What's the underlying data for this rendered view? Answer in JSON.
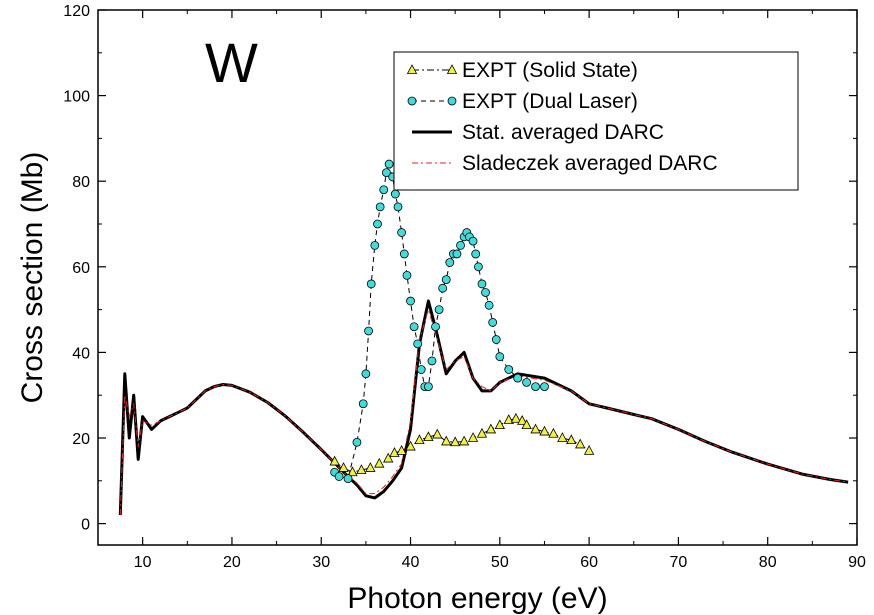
{
  "chart_data": {
    "type": "line",
    "annotation": "W",
    "xlabel": "Photon energy (eV)",
    "ylabel": "Cross section (Mb)",
    "xlim": [
      5,
      90
    ],
    "ylim": [
      -5,
      120
    ],
    "xticks": [
      10,
      20,
      30,
      40,
      50,
      60,
      70,
      80,
      90
    ],
    "yticks": [
      0,
      20,
      40,
      60,
      80,
      100,
      120
    ],
    "grid": false,
    "legend_position": "top-right",
    "series": [
      {
        "name": "EXPT (Solid State)",
        "style": "dash-dot line with triangle markers",
        "color": "#000000",
        "marker_fill": "#f2f23c",
        "x": [
          31.5,
          32.5,
          33.5,
          34.5,
          35.5,
          36.5,
          37.5,
          38.2,
          39,
          40,
          41,
          42,
          43,
          44,
          45,
          46,
          47,
          48,
          49,
          50,
          51,
          51.8,
          52.5,
          53,
          54,
          55,
          56,
          57,
          58,
          59,
          60
        ],
        "y": [
          14.5,
          13,
          12,
          12.5,
          13,
          14,
          15.2,
          16.5,
          17,
          18,
          19.5,
          20.2,
          20.8,
          19.2,
          19,
          19.2,
          20,
          21,
          22,
          23,
          24.2,
          24.5,
          24,
          23,
          22,
          21.5,
          21,
          20,
          19.5,
          18.5,
          17
        ]
      },
      {
        "name": "EXPT (Dual Laser)",
        "style": "dashed line with circle markers",
        "color": "#000000",
        "marker_fill": "#3fdcdc",
        "x": [
          31.5,
          32,
          33,
          34,
          34.7,
          35,
          35.3,
          35.6,
          36,
          36.3,
          36.6,
          37,
          37.3,
          37.6,
          38,
          38.3,
          38.6,
          39,
          39.3,
          39.6,
          40,
          40.4,
          40.8,
          41.2,
          41.6,
          42,
          42.4,
          42.8,
          43.2,
          43.6,
          44,
          44.4,
          44.8,
          45.2,
          45.6,
          46,
          46.3,
          46.6,
          47,
          47.3,
          47.6,
          48,
          48.4,
          48.8,
          49.2,
          49.6,
          50,
          51,
          52,
          53,
          54,
          55
        ],
        "y": [
          12,
          11,
          10.5,
          19,
          28,
          35,
          45,
          56,
          65,
          70,
          74,
          78,
          82,
          84,
          81,
          77,
          74,
          68,
          63,
          58,
          52,
          46,
          42,
          36,
          32,
          32,
          38,
          46,
          50,
          55,
          57,
          61,
          63,
          63,
          65,
          67,
          68,
          67,
          66,
          63,
          60,
          56,
          54,
          51,
          47,
          43,
          39,
          36,
          34,
          33,
          32,
          32
        ]
      },
      {
        "name": "Stat. averaged DARC",
        "style": "thick solid line",
        "color": "#000000",
        "x": [
          7.5,
          8,
          8.5,
          9,
          9.5,
          10,
          11,
          12,
          13,
          14,
          15,
          16,
          17,
          18,
          19,
          20,
          22,
          24,
          26,
          28,
          30,
          32,
          33,
          34,
          35,
          36,
          37,
          38,
          39,
          40,
          41,
          42,
          43,
          44,
          45,
          46,
          47,
          48,
          49,
          50,
          52,
          55,
          58,
          60,
          62,
          65,
          67,
          70,
          73,
          76,
          80,
          84,
          87,
          89
        ],
        "y": [
          2,
          35,
          20,
          30,
          15,
          25,
          22,
          24,
          25,
          26,
          27,
          29,
          31,
          32,
          32.5,
          32.3,
          30.7,
          28.3,
          25.1,
          21.3,
          17.3,
          13.1,
          11,
          9,
          6.5,
          6,
          7.5,
          10,
          13,
          22,
          42,
          52,
          44,
          35,
          38,
          40,
          34,
          31,
          31,
          33,
          35,
          34,
          31,
          28,
          27,
          25.5,
          24.5,
          22,
          19.2,
          16.7,
          13.9,
          11.5,
          10.3,
          9.7
        ]
      },
      {
        "name": "Sladeczek averaged DARC",
        "style": "thin red dash-dot line",
        "color": "#e8221e",
        "x": [
          7.5,
          8,
          8.5,
          9,
          9.5,
          10,
          11,
          12,
          13,
          14,
          15,
          16,
          17,
          18,
          19,
          20,
          22,
          24,
          26,
          28,
          30,
          32,
          33,
          34,
          35,
          36,
          37,
          38,
          39,
          40,
          41,
          42,
          43,
          44,
          45,
          46,
          47,
          48,
          49,
          50,
          52,
          55,
          58,
          60,
          62,
          65,
          67,
          70,
          73,
          76,
          80,
          84,
          87,
          89
        ],
        "y": [
          2,
          30,
          25,
          28,
          18,
          24,
          23,
          24,
          25,
          26,
          27,
          29,
          31,
          32,
          32.5,
          32.3,
          30.7,
          28.3,
          25.1,
          21.3,
          17.3,
          13.1,
          11,
          9.5,
          7,
          7,
          8.5,
          11,
          14,
          24,
          43,
          50,
          43,
          36,
          38,
          39,
          34,
          32,
          31,
          33,
          34.5,
          33.5,
          31,
          28,
          27,
          25.5,
          24.5,
          22,
          19.2,
          16.7,
          13.9,
          11.5,
          10.3,
          9.7
        ]
      }
    ]
  }
}
